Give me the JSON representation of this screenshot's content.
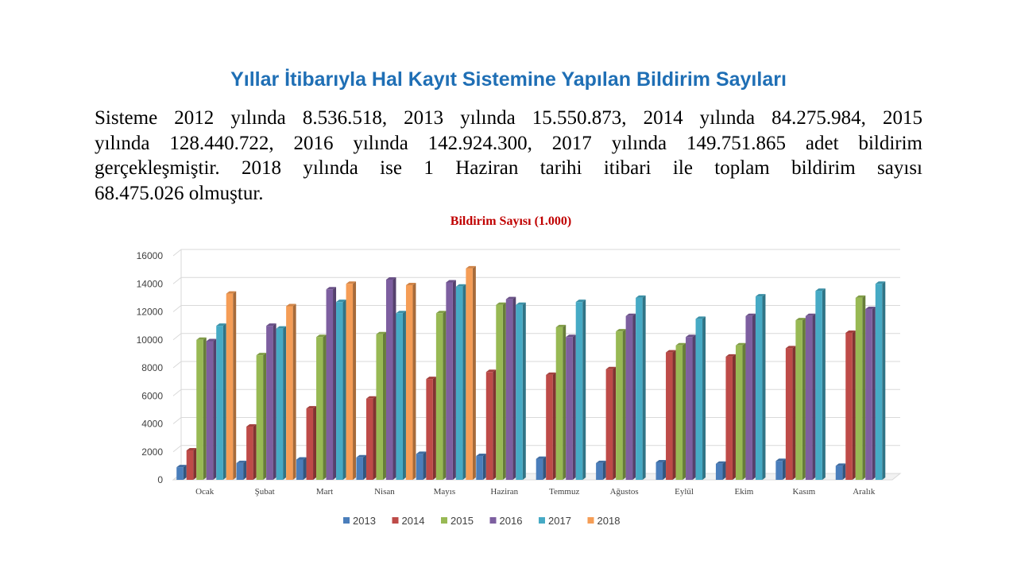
{
  "slide": {
    "title": "Yıllar İtibarıyla Hal Kayıt Sistemine Yapılan Bildirim Sayıları",
    "paragraph_lines": [
      "Sisteme 2012 yılında 8.536.518, 2013 yılında 15.550.873, 2014 yılında 84.275.984, 2015",
      "yılında 128.440.722, 2016 yılında 142.924.300, 2017 yılında 149.751.865 adet bildirim",
      "gerçekleşmiştir. 2018 yılında ise 1 Haziran tarihi itibari ile toplam bildirim sayısı",
      "68.475.026 olmuştur."
    ]
  },
  "chart_data": {
    "type": "bar",
    "title": "Bildirim Sayısı (1.000)",
    "categories": [
      "Ocak",
      "Şubat",
      "Mart",
      "Nisan",
      "Mayıs",
      "Haziran",
      "Temmuz",
      "Ağustos",
      "Eylül",
      "Ekim",
      "Kasım",
      "Aralık"
    ],
    "ylim": [
      0,
      16000
    ],
    "yticks": [
      0,
      2000,
      4000,
      6000,
      8000,
      10000,
      12000,
      14000,
      16000
    ],
    "grid": true,
    "legend_position": "bottom",
    "series": [
      {
        "name": "2013",
        "color": "#4a7ebb",
        "values": [
          900,
          1200,
          1450,
          1600,
          1850,
          1700,
          1500,
          1200,
          1250,
          1150,
          1350,
          1000
        ]
      },
      {
        "name": "2014",
        "color": "#be4b48",
        "values": [
          2100,
          3800,
          5100,
          5800,
          7200,
          7700,
          7500,
          7900,
          9100,
          8800,
          9400,
          10500
        ]
      },
      {
        "name": "2015",
        "color": "#98b954",
        "values": [
          10000,
          8900,
          10200,
          10400,
          11900,
          12500,
          10900,
          10600,
          9600,
          9600,
          11400,
          13000
        ]
      },
      {
        "name": "2016",
        "color": "#7d5fa0",
        "values": [
          9900,
          11000,
          13600,
          14300,
          14100,
          12900,
          10200,
          11700,
          10200,
          11700,
          11700,
          12200
        ]
      },
      {
        "name": "2017",
        "color": "#46aac5",
        "values": [
          11000,
          10800,
          12700,
          11900,
          13800,
          12500,
          12700,
          13000,
          11500,
          13100,
          13500,
          14000
        ]
      },
      {
        "name": "2018",
        "color": "#f59d56",
        "values": [
          13300,
          12400,
          14000,
          13900,
          15100,
          null,
          null,
          null,
          null,
          null,
          null,
          null
        ]
      }
    ]
  }
}
